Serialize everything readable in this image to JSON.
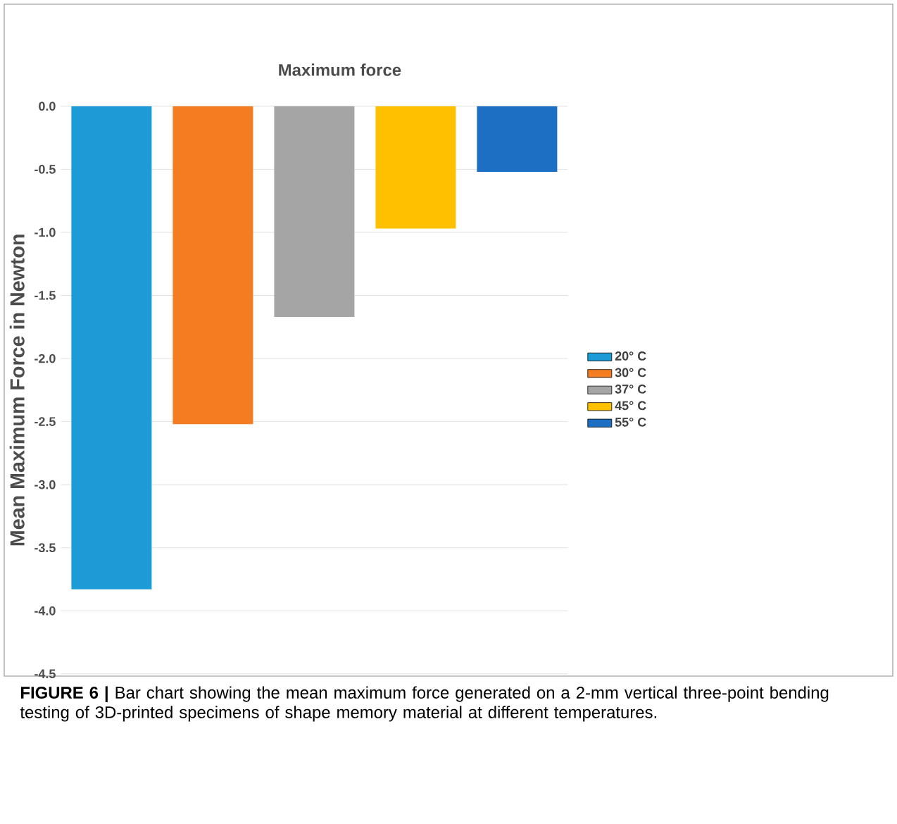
{
  "chart_data": {
    "type": "bar",
    "title": "Maximum force",
    "ylabel": "Mean Maximum Force in Newton",
    "categories": [
      null
    ],
    "series": [
      {
        "name": "20° C",
        "color": "#1d9bd7",
        "values": [
          -3.83
        ]
      },
      {
        "name": "30° C",
        "color": "#f47c21",
        "values": [
          -2.52
        ]
      },
      {
        "name": "37° C",
        "color": "#a5a5a5",
        "values": [
          -1.67
        ]
      },
      {
        "name": "45° C",
        "color": "#ffc000",
        "values": [
          -0.97
        ]
      },
      {
        "name": "55° C",
        "color": "#1c6fc2",
        "values": [
          -0.52
        ]
      }
    ],
    "ylim": [
      -4.5,
      0
    ],
    "yticks": [
      {
        "value": 0,
        "label": "0.0"
      },
      {
        "value": -0.5,
        "label": "-0.5"
      },
      {
        "value": -1,
        "label": "-1.0"
      },
      {
        "value": -1.5,
        "label": "-1.5"
      },
      {
        "value": -2,
        "label": "-2.0"
      },
      {
        "value": -2.5,
        "label": "-2.5"
      },
      {
        "value": -3,
        "label": "-3.0"
      },
      {
        "value": -3.5,
        "label": "-3.5"
      },
      {
        "value": -4,
        "label": "-4.0"
      },
      {
        "value": -4.5,
        "label": "-4.5"
      }
    ],
    "grid": "y",
    "legend": "right",
    "annotations": [
      "**FIGURE 6 |** Bar chart showing the mean maximum force generated on a 2-mm vertical three-point bending testing of 3D-printed specimens of shape memory material at different temperatures."
    ]
  }
}
